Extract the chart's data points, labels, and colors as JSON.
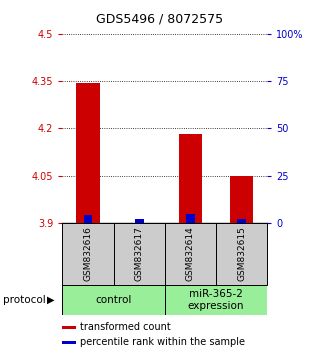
{
  "title": "GDS5496 / 8072575",
  "samples": [
    "GSM832616",
    "GSM832617",
    "GSM832614",
    "GSM832615"
  ],
  "red_values": [
    4.344,
    3.9,
    4.183,
    4.05
  ],
  "blue_values": [
    3.926,
    3.912,
    3.928,
    3.912
  ],
  "ymin": 3.9,
  "ymax": 4.5,
  "yticks_left": [
    3.9,
    4.05,
    4.2,
    4.35,
    4.5
  ],
  "yticks_right": [
    0,
    25,
    50,
    75,
    100
  ],
  "left_color": "#cc0000",
  "right_color": "#0000cc",
  "red_bar_color": "#cc0000",
  "blue_bar_color": "#0000cc",
  "sample_box_color": "#cccccc",
  "group_box_color": "#99ee99",
  "legend_red": "transformed count",
  "legend_blue": "percentile rank within the sample",
  "protocol_label": "protocol",
  "group_control_label": "control",
  "group_mir_label": "miR-365-2\nexpression",
  "title_fontsize": 9,
  "tick_fontsize": 7,
  "label_fontsize": 7.5,
  "legend_fontsize": 7
}
